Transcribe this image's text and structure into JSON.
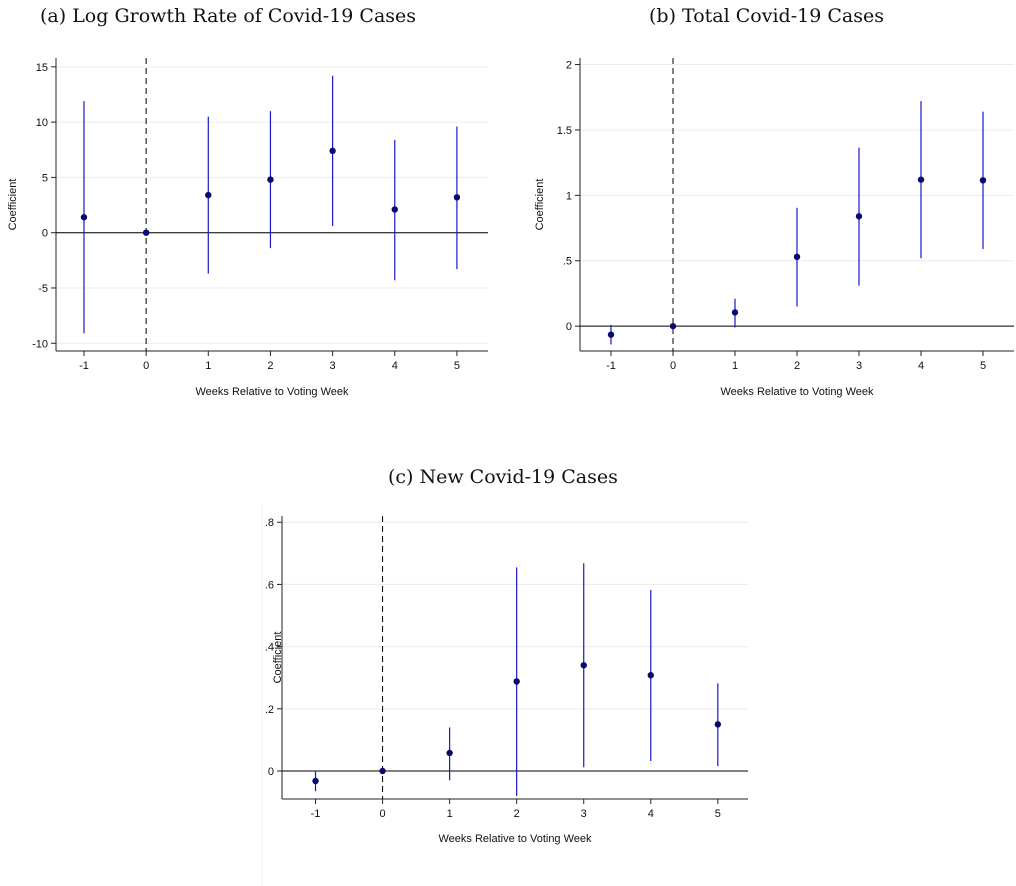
{
  "chart_data": [
    {
      "type": "scatter",
      "title": "(a) Log Growth Rate of Covid-19 Cases",
      "xlabel": "Weeks Relative to Voting Week",
      "ylabel": "Coefficient",
      "x": [
        -1,
        0,
        1,
        2,
        3,
        4,
        5
      ],
      "series": [
        {
          "coefficient": [
            1.4,
            0,
            3.4,
            4.8,
            7.4,
            2.1,
            3.2
          ],
          "ci_low": [
            -9.1,
            0,
            -3.7,
            -1.4,
            0.6,
            -4.3,
            -3.3
          ],
          "ci_high": [
            11.9,
            0,
            10.5,
            11.0,
            14.2,
            8.4,
            9.6
          ]
        }
      ],
      "xticks": [
        -1,
        0,
        1,
        2,
        3,
        4,
        5
      ],
      "yticks": [
        -10,
        -5,
        0,
        5,
        10,
        15
      ],
      "ytick_labels": [
        "-10",
        "-5",
        "0",
        "5",
        "10",
        "15"
      ],
      "xlim": [
        -1.45,
        5.5
      ],
      "ylim": [
        -10.7,
        15.8
      ],
      "grid": "horizontal",
      "reference_lines": {
        "vertical_dashed_x": 0,
        "horizontal_solid_y": 0
      },
      "colors": {
        "marker": "#0a0a6e",
        "ci": "#1818c8"
      }
    },
    {
      "type": "scatter",
      "title": "(b) Total Covid-19 Cases",
      "xlabel": "Weeks Relative to Voting Week",
      "ylabel": "Coefficient",
      "x": [
        -1,
        0,
        1,
        2,
        3,
        4,
        5
      ],
      "series": [
        {
          "coefficient": [
            -0.065,
            0,
            0.105,
            0.53,
            0.84,
            1.12,
            1.115
          ],
          "ci_low": [
            -0.14,
            0,
            -0.01,
            0.15,
            0.31,
            0.52,
            0.59
          ],
          "ci_high": [
            0.01,
            0,
            0.21,
            0.905,
            1.365,
            1.72,
            1.64
          ]
        }
      ],
      "xticks": [
        -1,
        0,
        1,
        2,
        3,
        4,
        5
      ],
      "yticks": [
        0,
        0.5,
        1,
        1.5,
        2
      ],
      "ytick_labels": [
        "0",
        ".5",
        "1",
        "1.5",
        "2"
      ],
      "xlim": [
        -1.5,
        5.5
      ],
      "ylim": [
        -0.19,
        2.05
      ],
      "grid": "horizontal",
      "reference_lines": {
        "vertical_dashed_x": 0,
        "horizontal_solid_y": 0
      },
      "colors": {
        "marker": "#0a0a6e",
        "ci": "#1818c8"
      }
    },
    {
      "type": "scatter",
      "title": "(c) New Covid-19 Cases",
      "xlabel": "Weeks Relative to Voting Week",
      "ylabel": "Coefficient",
      "x": [
        -1,
        0,
        1,
        2,
        3,
        4,
        5
      ],
      "series": [
        {
          "coefficient": [
            -0.032,
            0,
            0.058,
            0.288,
            0.34,
            0.308,
            0.15
          ],
          "ci_low": [
            -0.065,
            0,
            -0.03,
            -0.08,
            0.012,
            0.032,
            0.016
          ],
          "ci_high": [
            0.0,
            0,
            0.14,
            0.655,
            0.668,
            0.582,
            0.282
          ]
        }
      ],
      "xticks": [
        -1,
        0,
        1,
        2,
        3,
        4,
        5
      ],
      "yticks": [
        0,
        0.2,
        0.4,
        0.6,
        0.8
      ],
      "ytick_labels": [
        "0",
        ".2",
        ".4",
        ".6",
        ".8"
      ],
      "xlim": [
        -1.5,
        5.45
      ],
      "ylim": [
        -0.09,
        0.82
      ],
      "grid": "horizontal",
      "reference_lines": {
        "vertical_dashed_x": 0,
        "horizontal_solid_y": 0
      },
      "colors": {
        "marker": "#0a0a6e",
        "ci": "#1818c8"
      }
    }
  ]
}
